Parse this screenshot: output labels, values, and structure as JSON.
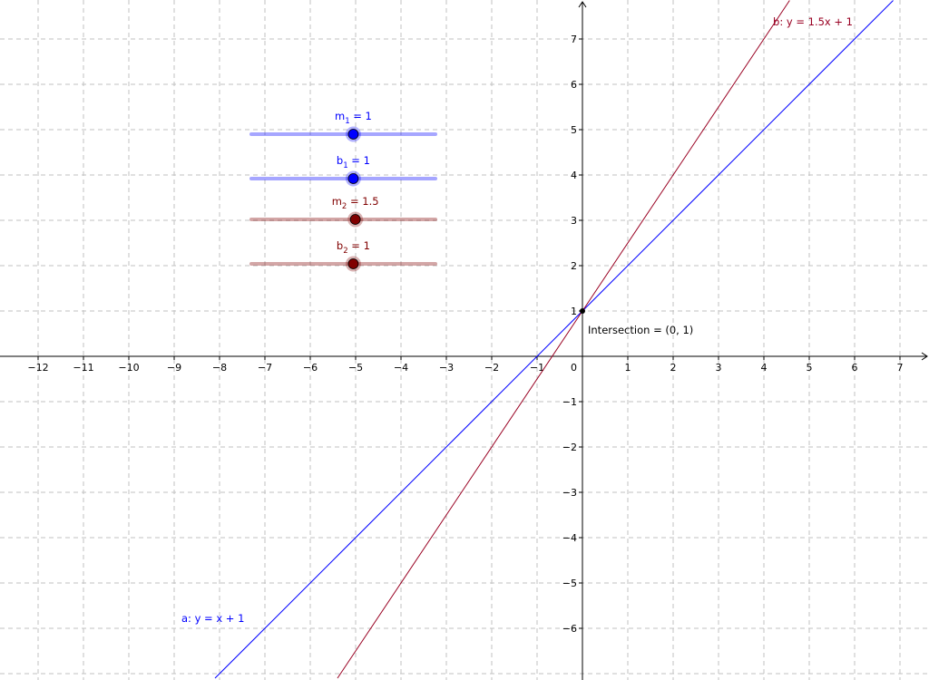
{
  "view": {
    "x_range": [
      -12.85,
      7.6
    ],
    "y_range": [
      -7.1,
      7.85
    ],
    "grid": true,
    "x_ticks": [
      -12,
      -11,
      -10,
      -9,
      -8,
      -7,
      -6,
      -5,
      -4,
      -3,
      -2,
      -1,
      1,
      2,
      3,
      4,
      5,
      6,
      7
    ],
    "y_ticks": [
      -6,
      -5,
      -4,
      -3,
      -2,
      -1,
      1,
      2,
      3,
      4,
      5,
      6,
      7
    ],
    "origin_label": "0",
    "minus_sign": "−"
  },
  "lines": [
    {
      "id": "a",
      "slope": 1,
      "intercept": 1,
      "color": "#0000ff",
      "label": "a: y = x + 1"
    },
    {
      "id": "b",
      "slope": 1.5,
      "intercept": 1,
      "color": "#990022",
      "label": "b: y = 1.5x + 1"
    }
  ],
  "intersection": {
    "x": 0,
    "y": 1,
    "label": "Intersection = (0, 1)"
  },
  "sliders": [
    {
      "id": "m1",
      "symbol": "m",
      "subscript": "1",
      "value_text": " = 1",
      "value": 1,
      "min": -5,
      "max": 5,
      "color": "#0000ff"
    },
    {
      "id": "b1",
      "symbol": "b",
      "subscript": "1",
      "value_text": " = 1",
      "value": 1,
      "min": -5,
      "max": 5,
      "color": "#0000ff"
    },
    {
      "id": "m2",
      "symbol": "m",
      "subscript": "2",
      "value_text": " = 1.5",
      "value": 1.5,
      "min": -5,
      "max": 5,
      "color": "#800000"
    },
    {
      "id": "b2",
      "symbol": "b",
      "subscript": "2",
      "value_text": " = 1",
      "value": 1,
      "min": -5,
      "max": 5,
      "color": "#800000"
    }
  ]
}
